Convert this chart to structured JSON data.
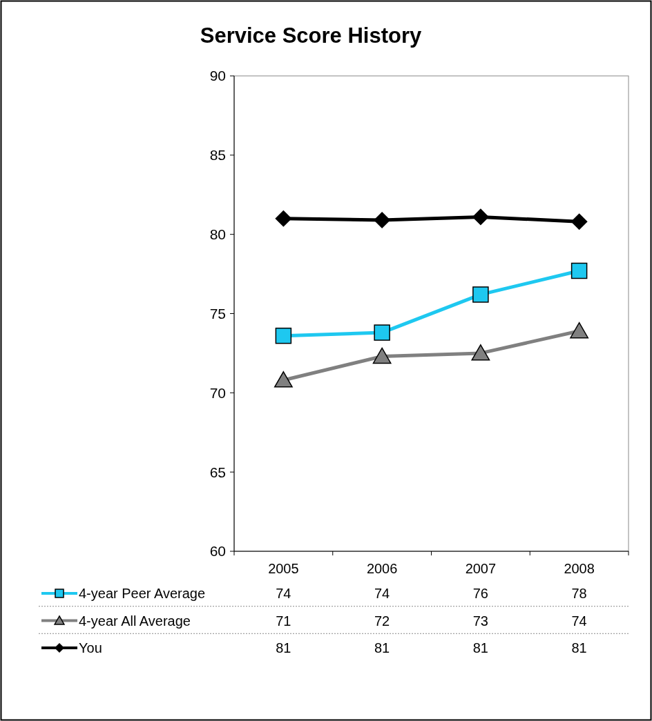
{
  "chart_data": {
    "type": "line",
    "title": "Service Score History",
    "categories": [
      "2005",
      "2006",
      "2007",
      "2008"
    ],
    "ylim": [
      60,
      90
    ],
    "yticks": [
      60,
      65,
      70,
      75,
      80,
      85,
      90
    ],
    "legend": "bottom",
    "grid": false,
    "series": [
      {
        "name": "4-year Peer Average",
        "color": "#1ec8f0",
        "marker": "square",
        "values": [
          73.6,
          73.8,
          76.2,
          77.7
        ],
        "value_labels": [
          "74",
          "74",
          "76",
          "78"
        ]
      },
      {
        "name": "4-year All Average",
        "color": "#808080",
        "marker": "triangle",
        "values": [
          70.8,
          72.3,
          72.5,
          73.9
        ],
        "value_labels": [
          "71",
          "72",
          "73",
          "74"
        ]
      },
      {
        "name": "You",
        "color": "#000000",
        "marker": "diamond",
        "values": [
          81.0,
          80.9,
          81.1,
          80.8
        ],
        "value_labels": [
          "81",
          "81",
          "81",
          "81"
        ]
      }
    ]
  }
}
